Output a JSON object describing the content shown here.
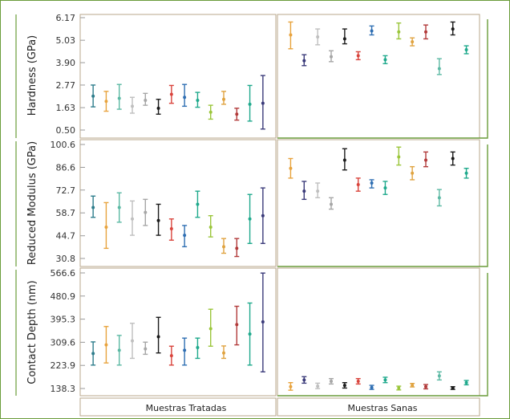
{
  "chart_data": {
    "type": "scatter",
    "subtype": "error-bar-panels",
    "groups": [
      "Muestras Tratadas",
      "Muestras Sanas"
    ],
    "colors": [
      "#2E7D8C",
      "#E8A33D",
      "#BFBFBF",
      "#A6A6A6",
      "#1A1A1A",
      "#D9443C",
      "#2F6FB3",
      "#1FA98C",
      "#9BC63B",
      "#E0A340",
      "#B23A3A",
      "#5CB9A4",
      "#3B3B7A"
    ],
    "panels": [
      {
        "ylabel": "Hardness (GPa)",
        "ylim": [
          0.5,
          6.17
        ],
        "ticks": [
          "0.50",
          "1.63",
          "2.77",
          "3.90",
          "5.03",
          "6.17"
        ],
        "series": [
          {
            "group": 0,
            "points": [
              {
                "y": 2.21,
                "lo": 1.67,
                "hi": 2.77,
                "c": 0
              },
              {
                "y": 1.95,
                "lo": 1.45,
                "hi": 2.45,
                "c": 1
              },
              {
                "y": 2.1,
                "lo": 1.55,
                "hi": 2.8,
                "c": 11
              },
              {
                "y": 1.7,
                "lo": 1.35,
                "hi": 2.15,
                "c": 2
              },
              {
                "y": 2.0,
                "lo": 1.75,
                "hi": 2.35,
                "c": 3
              },
              {
                "y": 1.6,
                "lo": 1.3,
                "hi": 2.05,
                "c": 4
              },
              {
                "y": 2.3,
                "lo": 1.85,
                "hi": 2.75,
                "c": 5
              },
              {
                "y": 2.15,
                "lo": 1.7,
                "hi": 2.8,
                "c": 6
              },
              {
                "y": 2.0,
                "lo": 1.65,
                "hi": 2.4,
                "c": 7
              },
              {
                "y": 1.4,
                "lo": 1.05,
                "hi": 1.75,
                "c": 8
              },
              {
                "y": 2.05,
                "lo": 1.8,
                "hi": 2.45,
                "c": 9
              },
              {
                "y": 1.3,
                "lo": 1.0,
                "hi": 1.6,
                "c": 10
              },
              {
                "y": 1.8,
                "lo": 0.95,
                "hi": 2.75,
                "c": 7
              },
              {
                "y": 1.85,
                "lo": 0.55,
                "hi": 3.25,
                "c": 12
              }
            ]
          },
          {
            "group": 1,
            "points": [
              {
                "y": 5.3,
                "lo": 4.6,
                "hi": 5.95,
                "c": 1
              },
              {
                "y": 4.0,
                "lo": 3.75,
                "hi": 4.3,
                "c": 12
              },
              {
                "y": 5.2,
                "lo": 4.8,
                "hi": 5.6,
                "c": 2
              },
              {
                "y": 4.2,
                "lo": 3.95,
                "hi": 4.5,
                "c": 3
              },
              {
                "y": 5.1,
                "lo": 4.85,
                "hi": 5.6,
                "c": 4
              },
              {
                "y": 4.25,
                "lo": 4.05,
                "hi": 4.45,
                "c": 5
              },
              {
                "y": 5.5,
                "lo": 5.3,
                "hi": 5.75,
                "c": 6
              },
              {
                "y": 4.05,
                "lo": 3.85,
                "hi": 4.25,
                "c": 7
              },
              {
                "y": 5.45,
                "lo": 5.1,
                "hi": 5.9,
                "c": 8
              },
              {
                "y": 4.95,
                "lo": 4.75,
                "hi": 5.15,
                "c": 9
              },
              {
                "y": 5.45,
                "lo": 5.1,
                "hi": 5.8,
                "c": 10
              },
              {
                "y": 3.6,
                "lo": 3.3,
                "hi": 4.1,
                "c": 11
              },
              {
                "y": 5.6,
                "lo": 5.3,
                "hi": 5.95,
                "c": 4
              },
              {
                "y": 4.55,
                "lo": 4.35,
                "hi": 4.75,
                "c": 7
              }
            ]
          }
        ]
      },
      {
        "ylabel": "Reduced Modulus (GPa)",
        "ylim": [
          30.8,
          100.6
        ],
        "ticks": [
          "30.8",
          "44.7",
          "58.7",
          "72.7",
          "86.6",
          "100.6"
        ],
        "series": [
          {
            "group": 0,
            "points": [
              {
                "y": 62,
                "lo": 56,
                "hi": 69,
                "c": 0
              },
              {
                "y": 50,
                "lo": 37,
                "hi": 65,
                "c": 1
              },
              {
                "y": 62,
                "lo": 53,
                "hi": 71,
                "c": 11
              },
              {
                "y": 55,
                "lo": 45,
                "hi": 66,
                "c": 2
              },
              {
                "y": 59,
                "lo": 51,
                "hi": 67,
                "c": 3
              },
              {
                "y": 54,
                "lo": 45,
                "hi": 64,
                "c": 4
              },
              {
                "y": 49,
                "lo": 42,
                "hi": 55,
                "c": 5
              },
              {
                "y": 45,
                "lo": 38,
                "hi": 51,
                "c": 6
              },
              {
                "y": 64,
                "lo": 56,
                "hi": 72,
                "c": 7
              },
              {
                "y": 50,
                "lo": 44,
                "hi": 57,
                "c": 8
              },
              {
                "y": 38,
                "lo": 34,
                "hi": 43,
                "c": 9
              },
              {
                "y": 37,
                "lo": 32,
                "hi": 43,
                "c": 10
              },
              {
                "y": 55,
                "lo": 40,
                "hi": 70,
                "c": 7
              },
              {
                "y": 57,
                "lo": 40,
                "hi": 74,
                "c": 12
              }
            ]
          },
          {
            "group": 1,
            "points": [
              {
                "y": 86,
                "lo": 80,
                "hi": 92,
                "c": 1
              },
              {
                "y": 72,
                "lo": 67,
                "hi": 78,
                "c": 12
              },
              {
                "y": 72,
                "lo": 68,
                "hi": 77,
                "c": 2
              },
              {
                "y": 64,
                "lo": 61,
                "hi": 68,
                "c": 3
              },
              {
                "y": 91,
                "lo": 85,
                "hi": 98,
                "c": 4
              },
              {
                "y": 76,
                "lo": 72,
                "hi": 80,
                "c": 5
              },
              {
                "y": 77,
                "lo": 74,
                "hi": 79,
                "c": 6
              },
              {
                "y": 74,
                "lo": 70,
                "hi": 78,
                "c": 7
              },
              {
                "y": 93,
                "lo": 88,
                "hi": 99,
                "c": 8
              },
              {
                "y": 83,
                "lo": 79,
                "hi": 87,
                "c": 9
              },
              {
                "y": 91,
                "lo": 87,
                "hi": 96,
                "c": 10
              },
              {
                "y": 68,
                "lo": 63,
                "hi": 73,
                "c": 11
              },
              {
                "y": 92,
                "lo": 88,
                "hi": 96,
                "c": 4
              },
              {
                "y": 83,
                "lo": 80,
                "hi": 86,
                "c": 7
              }
            ]
          }
        ]
      },
      {
        "ylabel": "Contact Depth (nm)",
        "ylim": [
          138.3,
          566.6
        ],
        "ticks": [
          "138.3",
          "223.9",
          "309.6",
          "395.3",
          "480.9",
          "566.6"
        ],
        "series": [
          {
            "group": 0,
            "points": [
              {
                "y": 268,
                "lo": 225,
                "hi": 311,
                "c": 0
              },
              {
                "y": 300,
                "lo": 233,
                "hi": 368,
                "c": 1
              },
              {
                "y": 280,
                "lo": 225,
                "hi": 335,
                "c": 11
              },
              {
                "y": 315,
                "lo": 250,
                "hi": 380,
                "c": 2
              },
              {
                "y": 285,
                "lo": 265,
                "hi": 310,
                "c": 3
              },
              {
                "y": 330,
                "lo": 270,
                "hi": 402,
                "c": 4
              },
              {
                "y": 260,
                "lo": 225,
                "hi": 295,
                "c": 5
              },
              {
                "y": 280,
                "lo": 225,
                "hi": 325,
                "c": 6
              },
              {
                "y": 290,
                "lo": 250,
                "hi": 325,
                "c": 7
              },
              {
                "y": 360,
                "lo": 295,
                "hi": 432,
                "c": 8
              },
              {
                "y": 270,
                "lo": 250,
                "hi": 296,
                "c": 9
              },
              {
                "y": 375,
                "lo": 300,
                "hi": 443,
                "c": 10
              },
              {
                "y": 340,
                "lo": 225,
                "hi": 455,
                "c": 7
              },
              {
                "y": 385,
                "lo": 200,
                "hi": 566,
                "c": 12
              }
            ]
          },
          {
            "group": 1,
            "points": [
              {
                "y": 145,
                "lo": 132,
                "hi": 160,
                "c": 1
              },
              {
                "y": 170,
                "lo": 158,
                "hi": 182,
                "c": 12
              },
              {
                "y": 147,
                "lo": 138,
                "hi": 158,
                "c": 2
              },
              {
                "y": 165,
                "lo": 155,
                "hi": 175,
                "c": 3
              },
              {
                "y": 150,
                "lo": 140,
                "hi": 160,
                "c": 4
              },
              {
                "y": 165,
                "lo": 155,
                "hi": 175,
                "c": 5
              },
              {
                "y": 142,
                "lo": 135,
                "hi": 150,
                "c": 6
              },
              {
                "y": 170,
                "lo": 160,
                "hi": 180,
                "c": 7
              },
              {
                "y": 140,
                "lo": 133,
                "hi": 147,
                "c": 8
              },
              {
                "y": 150,
                "lo": 144,
                "hi": 157,
                "c": 9
              },
              {
                "y": 145,
                "lo": 137,
                "hi": 153,
                "c": 10
              },
              {
                "y": 185,
                "lo": 170,
                "hi": 200,
                "c": 11
              },
              {
                "y": 140,
                "lo": 135,
                "hi": 145,
                "c": 4
              },
              {
                "y": 160,
                "lo": 152,
                "hi": 168,
                "c": 7
              }
            ]
          }
        ]
      }
    ]
  }
}
